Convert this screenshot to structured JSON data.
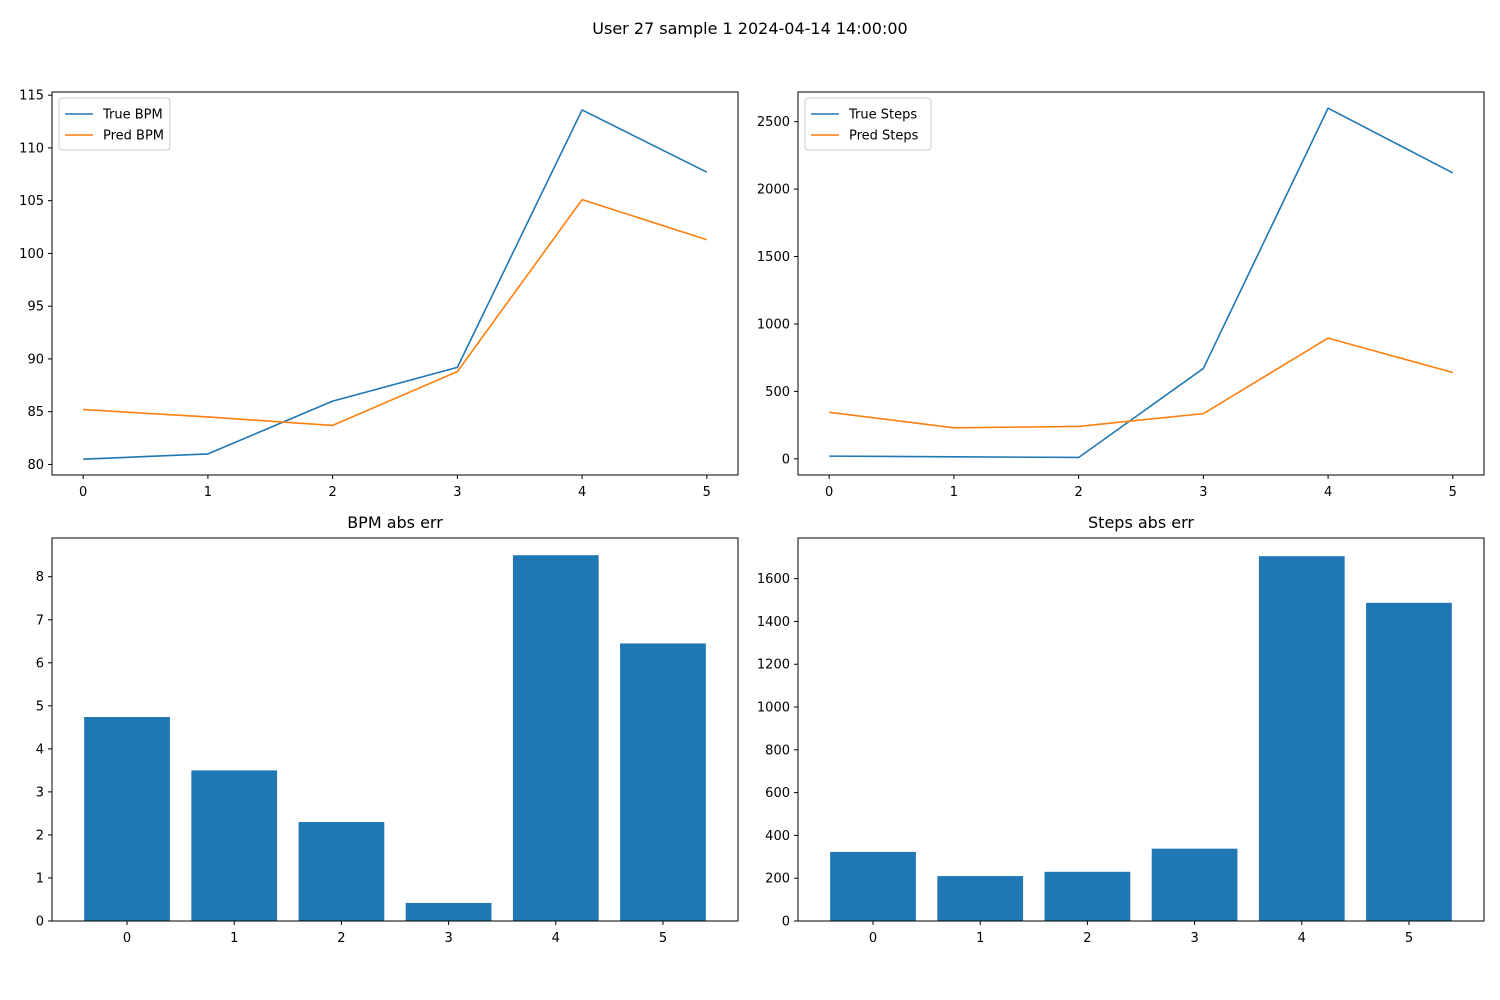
{
  "figure": {
    "suptitle": "User 27 sample 1 2024-04-14 14:00:00"
  },
  "colors": {
    "blue": "#1f77b4",
    "orange": "#ff7f0e",
    "axis": "#000000",
    "legend_border": "#cccccc"
  },
  "chart_data": [
    {
      "type": "line",
      "title": "",
      "xlabel": "",
      "ylabel": "",
      "x": [
        0,
        1,
        2,
        3,
        4,
        5
      ],
      "xticks": [
        0,
        1,
        2,
        3,
        4,
        5
      ],
      "xlim": [
        -0.25,
        5.25
      ],
      "ylim": [
        79.0,
        115.3
      ],
      "yticks": [
        80,
        85,
        90,
        95,
        100,
        105,
        110,
        115
      ],
      "legend_position": "upper-left",
      "grid": false,
      "series": [
        {
          "name": "True BPM",
          "color": "#1f77b4",
          "values": [
            80.5,
            81.0,
            86.0,
            89.2,
            113.6,
            107.7
          ]
        },
        {
          "name": "Pred BPM",
          "color": "#ff7f0e",
          "values": [
            85.2,
            84.5,
            83.7,
            88.8,
            105.1,
            101.3
          ]
        }
      ]
    },
    {
      "type": "line",
      "title": "",
      "xlabel": "",
      "ylabel": "",
      "x": [
        0,
        1,
        2,
        3,
        4,
        5
      ],
      "xticks": [
        0,
        1,
        2,
        3,
        4,
        5
      ],
      "xlim": [
        -0.25,
        5.25
      ],
      "ylim": [
        -120,
        2720
      ],
      "yticks": [
        0,
        500,
        1000,
        1500,
        2000,
        2500
      ],
      "legend_position": "upper-left",
      "grid": false,
      "series": [
        {
          "name": "True Steps",
          "color": "#1f77b4",
          "values": [
            20,
            15,
            10,
            670,
            2600,
            2120
          ]
        },
        {
          "name": "Pred Steps",
          "color": "#ff7f0e",
          "values": [
            345,
            230,
            240,
            335,
            895,
            640
          ]
        }
      ]
    },
    {
      "type": "bar",
      "title": "BPM abs err",
      "xlabel": "",
      "ylabel": "",
      "categories": [
        "0",
        "1",
        "2",
        "3",
        "4",
        "5"
      ],
      "values": [
        4.74,
        3.5,
        2.3,
        0.42,
        8.5,
        6.45
      ],
      "color": "#1f77b4",
      "xlim": [
        -0.7,
        5.7
      ],
      "ylim": [
        0,
        8.9
      ],
      "yticks": [
        0,
        1,
        2,
        3,
        4,
        5,
        6,
        7,
        8
      ],
      "grid": false
    },
    {
      "type": "bar",
      "title": "Steps abs err",
      "xlabel": "",
      "ylabel": "",
      "categories": [
        "0",
        "1",
        "2",
        "3",
        "4",
        "5"
      ],
      "values": [
        323,
        210,
        230,
        338,
        1705,
        1487
      ],
      "color": "#1f77b4",
      "xlim": [
        -0.7,
        5.7
      ],
      "ylim": [
        0,
        1790
      ],
      "yticks": [
        0,
        200,
        400,
        600,
        800,
        1000,
        1200,
        1400,
        1600
      ],
      "grid": false
    }
  ]
}
